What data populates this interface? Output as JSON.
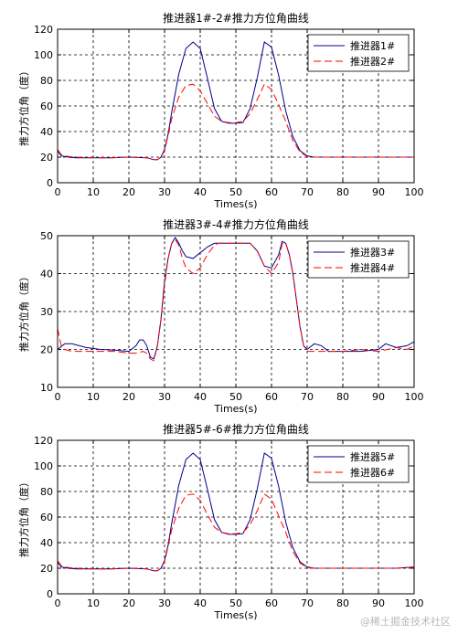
{
  "watermark": "@稀土掘金技术社区",
  "chart_data": [
    {
      "type": "line",
      "title": "推进器1#-2#推力方位角曲线",
      "xlabel": "Times(s)",
      "ylabel": "推力方位角（度）",
      "xlim": [
        0,
        100
      ],
      "ylim": [
        0,
        120
      ],
      "xticks": [
        "0",
        "10",
        "20",
        "30",
        "40",
        "50",
        "60",
        "70",
        "80",
        "90",
        "100"
      ],
      "yticks": [
        "0",
        "20",
        "40",
        "60",
        "80",
        "100",
        "120"
      ],
      "grid": true,
      "legend_position": "top-right",
      "series": [
        {
          "name": "推进器1#",
          "color": "#00008b",
          "dash": "solid",
          "x": [
            0,
            1,
            3,
            5,
            10,
            15,
            20,
            25,
            27,
            28,
            29,
            30,
            31,
            32,
            34,
            36,
            38,
            40,
            42,
            44,
            46,
            48,
            50,
            52,
            54,
            56,
            58,
            60,
            62,
            64,
            66,
            68,
            70,
            72,
            75,
            80,
            85,
            90,
            95,
            100
          ],
          "y": [
            25,
            21,
            20,
            19.5,
            19.5,
            19.5,
            20,
            19.5,
            18,
            18,
            20,
            26,
            38,
            55,
            85,
            105,
            110,
            105,
            82,
            58,
            48,
            46.5,
            46.5,
            47,
            58,
            82,
            110,
            106,
            84,
            56,
            36,
            25,
            21,
            20,
            20,
            20,
            20,
            20,
            20,
            20
          ]
        },
        {
          "name": "推进器2#",
          "color": "#ff0000",
          "dash": "8,4",
          "x": [
            0,
            1,
            3,
            5,
            10,
            15,
            20,
            25,
            27,
            28,
            29,
            30,
            31,
            32,
            34,
            36,
            38,
            40,
            42,
            44,
            46,
            48,
            50,
            52,
            54,
            56,
            58,
            60,
            62,
            64,
            66,
            68,
            70,
            72,
            75,
            80,
            85,
            90,
            95,
            100
          ],
          "y": [
            26,
            22,
            20.5,
            20,
            19.5,
            19.5,
            20,
            19.5,
            18,
            18,
            20,
            25,
            37,
            50,
            67,
            76,
            77,
            72,
            62,
            52,
            48,
            47,
            47,
            48,
            54,
            65,
            77,
            73,
            61,
            48,
            33,
            24,
            20.5,
            20,
            20,
            20,
            20,
            20,
            20,
            20
          ]
        }
      ]
    },
    {
      "type": "line",
      "title": "推进器3#-4#推力方位角曲线",
      "xlabel": "Times(s)",
      "ylabel": "推力方位角（度）",
      "xlim": [
        0,
        100
      ],
      "ylim": [
        10,
        50
      ],
      "xticks": [
        "0",
        "10",
        "20",
        "30",
        "40",
        "50",
        "60",
        "70",
        "80",
        "90",
        "100"
      ],
      "yticks": [
        "10",
        "20",
        "30",
        "40",
        "50"
      ],
      "grid": true,
      "legend_position": "top-right",
      "series": [
        {
          "name": "推进器3#",
          "color": "#00008b",
          "dash": "solid",
          "x": [
            0,
            2,
            4,
            8,
            12,
            16,
            20,
            22,
            23,
            24,
            25,
            26,
            27,
            28,
            29,
            30,
            31,
            32,
            33,
            34,
            35,
            36,
            38,
            40,
            42,
            44,
            45,
            46,
            50,
            54,
            56,
            58,
            60,
            62,
            63,
            64,
            65,
            66,
            67,
            68,
            69,
            70,
            72,
            74,
            76,
            80,
            85,
            90,
            92,
            95,
            98,
            100
          ],
          "y": [
            20,
            21.5,
            21.5,
            20.5,
            20,
            19.8,
            19.5,
            21,
            22.5,
            22.5,
            21,
            18,
            17.5,
            21,
            28,
            38,
            44,
            48,
            49.5,
            48,
            46,
            44.5,
            44,
            45.5,
            47,
            48,
            48,
            48,
            48,
            48,
            46,
            42,
            41.5,
            45,
            48.5,
            48,
            45,
            40,
            33,
            26,
            21,
            20,
            21.5,
            21,
            19.5,
            19.5,
            19.5,
            20,
            21.5,
            20.5,
            21,
            22
          ]
        },
        {
          "name": "推进器4#",
          "color": "#ff0000",
          "dash": "8,4",
          "x": [
            0,
            1,
            2,
            4,
            8,
            12,
            16,
            20,
            22,
            24,
            25,
            26,
            27,
            28,
            29,
            30,
            31,
            32,
            33,
            34,
            35,
            36,
            38,
            40,
            42,
            44,
            45,
            46,
            50,
            54,
            56,
            58,
            60,
            62,
            63,
            64,
            65,
            66,
            67,
            68,
            69,
            70,
            72,
            75,
            80,
            85,
            90,
            95,
            98,
            100
          ],
          "y": [
            25.5,
            21,
            20,
            19.5,
            19.5,
            19.5,
            19.5,
            19,
            19,
            19.5,
            19,
            17.5,
            17,
            21,
            28,
            37,
            44,
            48,
            49,
            47.5,
            44,
            41.5,
            40,
            41.5,
            45,
            47.5,
            48,
            48,
            48,
            48,
            46,
            42,
            40,
            43,
            48,
            48,
            45,
            40,
            33,
            26,
            21,
            19.5,
            19.5,
            19.5,
            19.5,
            20,
            19.5,
            20.5,
            20,
            21
          ]
        }
      ]
    },
    {
      "type": "line",
      "title": "推进器5#-6#推力方位角曲线",
      "xlabel": "Times(s)",
      "ylabel": "推力方位角（度）",
      "xlim": [
        0,
        100
      ],
      "ylim": [
        0,
        120
      ],
      "xticks": [
        "0",
        "10",
        "20",
        "30",
        "40",
        "50",
        "60",
        "70",
        "80",
        "90",
        "100"
      ],
      "yticks": [
        "0",
        "20",
        "40",
        "60",
        "80",
        "100",
        "120"
      ],
      "grid": true,
      "legend_position": "top-right",
      "series": [
        {
          "name": "推进器5#",
          "color": "#00008b",
          "dash": "solid",
          "x": [
            0,
            1,
            3,
            5,
            10,
            15,
            20,
            25,
            27,
            28,
            29,
            30,
            31,
            32,
            34,
            36,
            38,
            40,
            42,
            44,
            46,
            48,
            50,
            52,
            54,
            56,
            58,
            60,
            62,
            64,
            66,
            68,
            70,
            72,
            75,
            80,
            85,
            90,
            95,
            100
          ],
          "y": [
            25,
            21,
            20,
            19.5,
            19.5,
            19.5,
            20,
            19.5,
            18,
            18,
            20,
            26,
            38,
            55,
            85,
            105,
            110,
            105,
            82,
            58,
            48,
            46.5,
            46.5,
            47,
            58,
            82,
            110,
            106,
            84,
            56,
            36,
            25,
            21,
            20,
            20,
            20,
            20,
            20,
            20,
            21
          ]
        },
        {
          "name": "推进器6#",
          "color": "#ff0000",
          "dash": "8,4",
          "x": [
            0,
            1,
            3,
            5,
            10,
            15,
            20,
            25,
            27,
            28,
            29,
            30,
            31,
            32,
            34,
            36,
            38,
            40,
            42,
            44,
            46,
            48,
            50,
            52,
            54,
            56,
            58,
            60,
            62,
            64,
            66,
            68,
            70,
            72,
            75,
            80,
            85,
            90,
            95,
            100
          ],
          "y": [
            26,
            22,
            20.5,
            20,
            19.5,
            19.5,
            20,
            19.5,
            18,
            18,
            20,
            25,
            37,
            50,
            67,
            77,
            78,
            73,
            62,
            52,
            48,
            47,
            47,
            48,
            54,
            65,
            78,
            74,
            61,
            48,
            33,
            24,
            20.5,
            20,
            20,
            20,
            20,
            20,
            20,
            21
          ]
        }
      ]
    }
  ]
}
